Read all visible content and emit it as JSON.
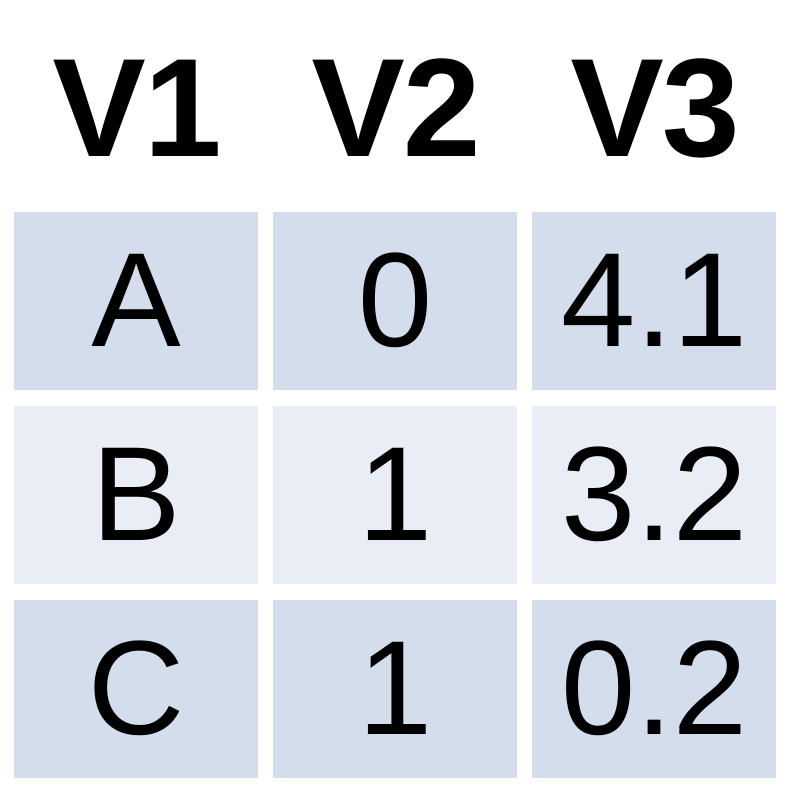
{
  "chart_data": {
    "type": "table",
    "columns": [
      "V1",
      "V2",
      "V3"
    ],
    "rows": [
      [
        "A",
        "0",
        "4.1"
      ],
      [
        "B",
        "1",
        "3.2"
      ],
      [
        "C",
        "1",
        "0.2"
      ]
    ],
    "row_colors": [
      "#d3ddeb",
      "#e9eef6",
      "#d3ddeb"
    ]
  }
}
